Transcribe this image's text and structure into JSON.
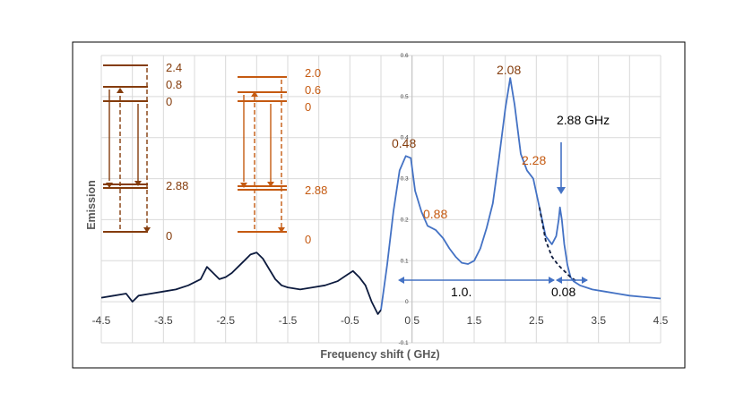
{
  "chart_data": {
    "type": "line",
    "xlabel": "Frequency shift ( GHz)",
    "ylabel": "Emission",
    "xlim": [
      -4.5,
      4.5
    ],
    "x_ticks": [
      "-4.5",
      "-3.5",
      "-2.5",
      "-1.5",
      "-0.5",
      "0.5",
      "1.5",
      "2.5",
      "3.5",
      "4.5"
    ],
    "secondary_y_ticks": [
      "0.6",
      "0.5",
      "0.4",
      "0.3",
      "0.2",
      "0.1",
      "0",
      "-0.1"
    ],
    "secondary_ylim": [
      -0.1,
      0.6
    ],
    "grid": true,
    "series": [
      {
        "color": "#4472c4",
        "style": "solid",
        "x": [
          0.0,
          0.1,
          0.2,
          0.3,
          0.4,
          0.48,
          0.55,
          0.65,
          0.75,
          0.88,
          1.0,
          1.1,
          1.2,
          1.3,
          1.4,
          1.5,
          1.6,
          1.7,
          1.8,
          1.9,
          2.0,
          2.08,
          2.15,
          2.25,
          2.35,
          2.45,
          2.55,
          2.65,
          2.75,
          2.82,
          2.86,
          2.88,
          2.91,
          2.95,
          3.0,
          3.05,
          3.1,
          3.2,
          3.4,
          3.6,
          3.8,
          4.0,
          4.2,
          4.5
        ],
        "y": [
          -0.02,
          0.09,
          0.22,
          0.32,
          0.355,
          0.35,
          0.27,
          0.22,
          0.185,
          0.175,
          0.155,
          0.13,
          0.11,
          0.095,
          0.092,
          0.1,
          0.13,
          0.18,
          0.24,
          0.35,
          0.47,
          0.545,
          0.48,
          0.36,
          0.32,
          0.3,
          0.23,
          0.16,
          0.14,
          0.16,
          0.2,
          0.23,
          0.2,
          0.14,
          0.09,
          0.06,
          0.05,
          0.04,
          0.03,
          0.025,
          0.02,
          0.015,
          0.012,
          0.008
        ]
      },
      {
        "color": "#0d1b3e",
        "style": "dashed",
        "x": [
          2.55,
          2.65,
          2.75,
          2.85,
          2.95,
          3.05,
          3.15
        ],
        "y": [
          0.23,
          0.15,
          0.11,
          0.09,
          0.075,
          0.06,
          0.05
        ]
      },
      {
        "color": "#0d1b3e",
        "style": "solid",
        "x": [
          -4.5,
          -4.3,
          -4.1,
          -4.0,
          -3.9,
          -3.7,
          -3.5,
          -3.3,
          -3.1,
          -2.9,
          -2.8,
          -2.7,
          -2.6,
          -2.5,
          -2.4,
          -2.3,
          -2.2,
          -2.1,
          -2.0,
          -1.9,
          -1.8,
          -1.7,
          -1.6,
          -1.5,
          -1.3,
          -1.1,
          -0.9,
          -0.7,
          -0.55,
          -0.45,
          -0.35,
          -0.25,
          -0.15,
          -0.05,
          0.0
        ],
        "y": [
          0.01,
          0.015,
          0.02,
          0.0,
          0.015,
          0.02,
          0.025,
          0.03,
          0.04,
          0.055,
          0.085,
          0.07,
          0.055,
          0.06,
          0.07,
          0.085,
          0.1,
          0.115,
          0.12,
          0.105,
          0.08,
          0.055,
          0.04,
          0.035,
          0.03,
          0.035,
          0.04,
          0.05,
          0.065,
          0.075,
          0.06,
          0.04,
          0.0,
          -0.03,
          -0.02
        ]
      }
    ],
    "annotations": {
      "peak_0_48": "0.48",
      "shoulder_0_88": "0.88",
      "peak_2_08": "2.08",
      "shoulder_2_28": "2.28",
      "nv_label": "2.88 GHz",
      "span_1": "1.0.",
      "span_2": "0.08"
    },
    "level_diagrams": [
      {
        "color": "#843c0c",
        "labels": [
          "2.4",
          "0.8",
          "0",
          "2.88",
          "0"
        ]
      },
      {
        "color": "#c55a11",
        "labels": [
          "2.0",
          "0.6",
          "0",
          "2.88",
          "0"
        ]
      }
    ]
  }
}
